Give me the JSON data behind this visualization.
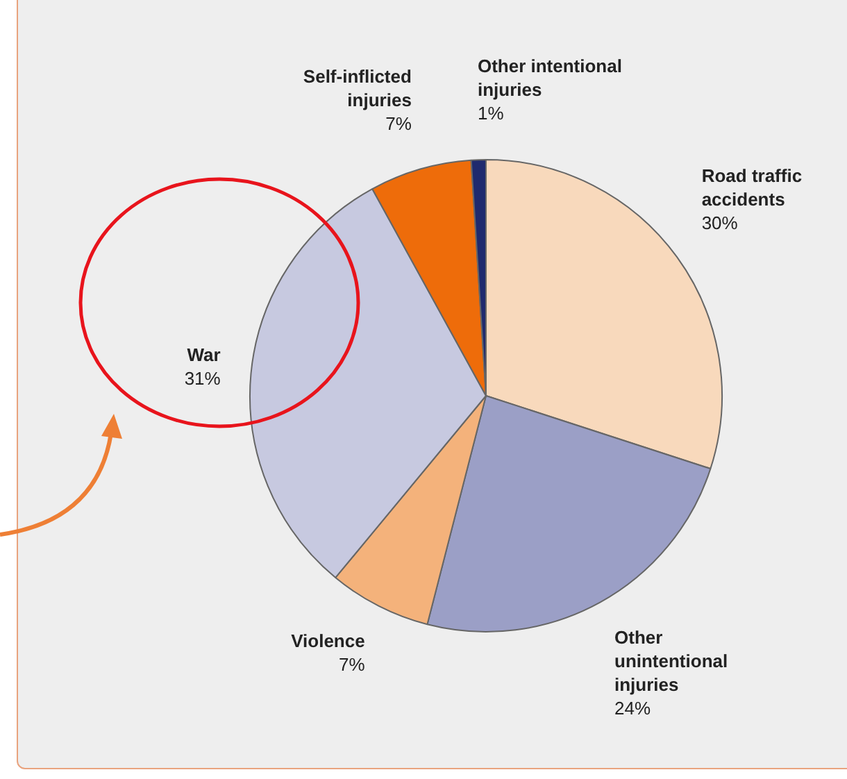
{
  "chart_data": {
    "type": "pie",
    "categories": [
      "Road traffic accidents",
      "Other unintentional injuries",
      "Violence",
      "War",
      "Self-inflicted injuries",
      "Other intentional injuries"
    ],
    "values": [
      30,
      24,
      7,
      31,
      7,
      1
    ],
    "colors": [
      "#f8d9bc",
      "#9b9fc6",
      "#f4b27b",
      "#c7c9e0",
      "#ee6c0a",
      "#1f2a6e"
    ],
    "value_labels": [
      "30%",
      "24%",
      "7%",
      "31%",
      "7%",
      "1%"
    ],
    "legend": false
  }
}
